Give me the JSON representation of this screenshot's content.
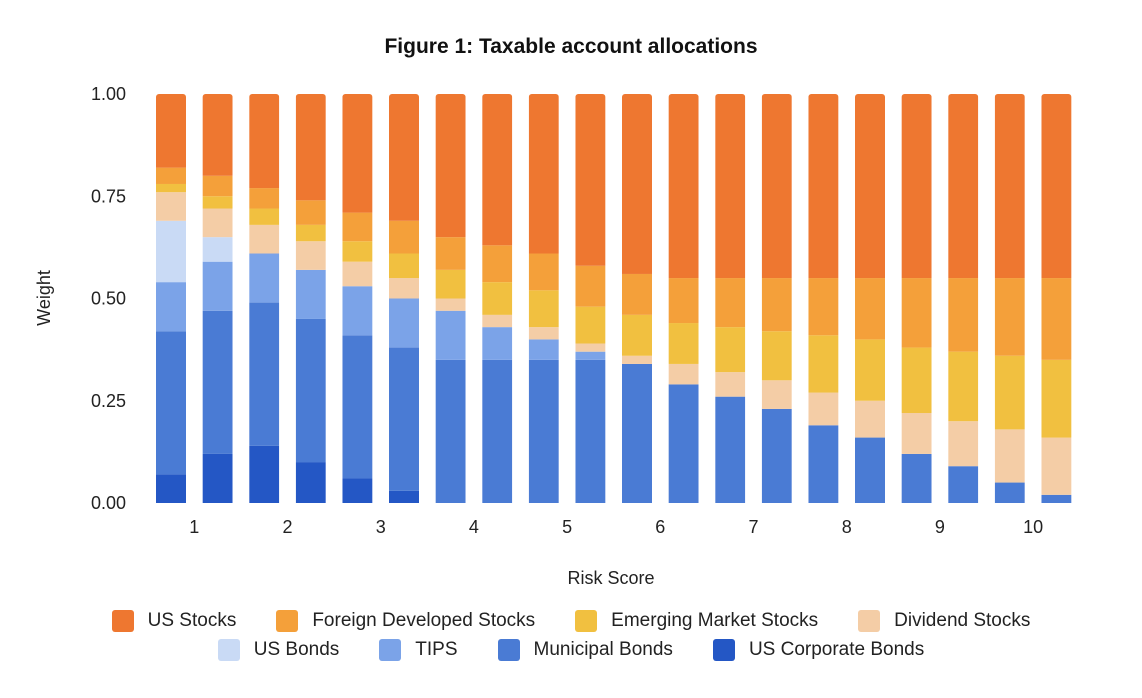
{
  "chart_data": {
    "type": "bar",
    "stacked": true,
    "title": "Figure 1: Taxable account allocations",
    "xlabel": "Risk Score",
    "ylabel": "Weight",
    "ylim": [
      0,
      1
    ],
    "yticks": [
      "0.00",
      "0.25",
      "0.50",
      "0.75",
      "1.00"
    ],
    "categories": [
      "0.5",
      "1",
      "1.5",
      "2",
      "2.5",
      "3",
      "3.5",
      "4",
      "4.5",
      "5",
      "5.5",
      "6",
      "6.5",
      "7",
      "7.5",
      "8",
      "8.5",
      "9",
      "9.5",
      "10"
    ],
    "x_tick_labels": [
      "",
      "1",
      "",
      "2",
      "",
      "3",
      "",
      "4",
      "",
      "5",
      "",
      "6",
      "",
      "7",
      "",
      "8",
      "",
      "9",
      "",
      "10"
    ],
    "series": [
      {
        "name": "US Corporate Bonds",
        "color": "#2457c5",
        "values": [
          0.07,
          0.12,
          0.14,
          0.1,
          0.06,
          0.03,
          0,
          0,
          0,
          0,
          0,
          0,
          0,
          0,
          0,
          0,
          0,
          0,
          0,
          0
        ]
      },
      {
        "name": "Municipal Bonds",
        "color": "#4a7bd4",
        "values": [
          0.35,
          0.35,
          0.35,
          0.35,
          0.35,
          0.35,
          0.35,
          0.35,
          0.35,
          0.35,
          0.34,
          0.29,
          0.26,
          0.23,
          0.19,
          0.16,
          0.12,
          0.09,
          0.05,
          0.02
        ]
      },
      {
        "name": "TIPS",
        "color": "#7ba3e8",
        "values": [
          0.12,
          0.12,
          0.12,
          0.12,
          0.12,
          0.12,
          0.12,
          0.08,
          0.05,
          0.02,
          0,
          0,
          0,
          0,
          0,
          0,
          0,
          0,
          0,
          0
        ]
      },
      {
        "name": "US Bonds",
        "color": "#c9daf5",
        "values": [
          0.15,
          0.06,
          0,
          0,
          0,
          0,
          0,
          0,
          0,
          0,
          0,
          0,
          0,
          0,
          0,
          0,
          0,
          0,
          0,
          0
        ]
      },
      {
        "name": "Dividend Stocks",
        "color": "#f4cda6",
        "values": [
          0.07,
          0.07,
          0.07,
          0.07,
          0.06,
          0.05,
          0.03,
          0.03,
          0.03,
          0.02,
          0.02,
          0.05,
          0.06,
          0.07,
          0.08,
          0.09,
          0.1,
          0.11,
          0.13,
          0.14
        ]
      },
      {
        "name": "Emerging Market Stocks",
        "color": "#f1c040",
        "values": [
          0.02,
          0.03,
          0.04,
          0.04,
          0.05,
          0.06,
          0.07,
          0.08,
          0.09,
          0.09,
          0.1,
          0.1,
          0.11,
          0.12,
          0.14,
          0.15,
          0.16,
          0.17,
          0.18,
          0.19
        ]
      },
      {
        "name": "Foreign Developed Stocks",
        "color": "#f4a03a",
        "values": [
          0.04,
          0.05,
          0.05,
          0.06,
          0.07,
          0.08,
          0.08,
          0.09,
          0.09,
          0.1,
          0.1,
          0.11,
          0.12,
          0.13,
          0.14,
          0.15,
          0.17,
          0.18,
          0.19,
          0.2
        ]
      },
      {
        "name": "US Stocks",
        "color": "#ee7730",
        "values": [
          0.18,
          0.2,
          0.23,
          0.26,
          0.29,
          0.31,
          0.35,
          0.37,
          0.39,
          0.42,
          0.44,
          0.45,
          0.45,
          0.45,
          0.45,
          0.45,
          0.45,
          0.45,
          0.45,
          0.45
        ]
      }
    ],
    "legend": {
      "placement": "bottom",
      "rows": [
        [
          "US Stocks",
          "Foreign Developed Stocks",
          "Emerging Market Stocks",
          "Dividend Stocks"
        ],
        [
          "US Bonds",
          "TIPS",
          "Municipal Bonds",
          "US Corporate Bonds"
        ]
      ]
    }
  }
}
